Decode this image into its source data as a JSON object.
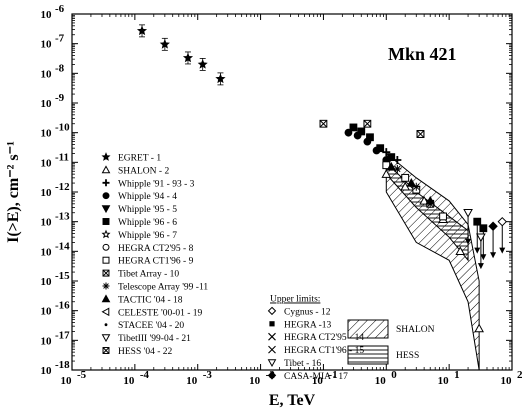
{
  "chart_data": {
    "type": "scatter",
    "title": "Mkn 421",
    "xlabel": "E, TeV",
    "ylabel": "I(>E), cm⁻² s⁻¹",
    "xscale": "log",
    "yscale": "log",
    "xlim": [
      1e-05,
      100
    ],
    "ylim": [
      1e-18,
      1e-06
    ],
    "grid": false,
    "x_tick_labels": [
      "10",
      "10",
      "10",
      "10",
      "10",
      "10",
      "10",
      "10"
    ],
    "x_tick_exponents": [
      "-5",
      "-4",
      "-3",
      "-2",
      "-1",
      "0",
      "1",
      "2"
    ],
    "y_tick_labels": [
      "10",
      "10",
      "10",
      "10",
      "10",
      "10",
      "10",
      "10",
      "10",
      "10",
      "10",
      "10",
      "10"
    ],
    "y_tick_exponents": [
      "-6",
      "-7",
      "-8",
      "-9",
      "-10",
      "-11",
      "-12",
      "-13",
      "-14",
      "-15",
      "-16",
      "-17",
      "-18"
    ],
    "series": [
      {
        "name": "EGRET - 1",
        "marker": "star-filled",
        "x": [
          0.00013,
          0.0003,
          0.0007,
          0.0012,
          0.0023
        ],
        "y": [
          2.7e-07,
          9.5e-08,
          3.3e-08,
          2e-08,
          6.5e-09
        ]
      },
      {
        "name": "Whipple '96 - 6",
        "marker": "square-filled",
        "x": [
          0.3,
          0.4,
          0.55,
          0.8,
          1.2
        ],
        "y": [
          1.5e-10,
          1.1e-10,
          7e-11,
          3e-11,
          1.5e-11
        ]
      },
      {
        "name": "Whipple '94 - 4",
        "marker": "circle-filled",
        "x": [
          0.25,
          0.35,
          0.5,
          0.7,
          1.0
        ],
        "y": [
          1e-10,
          8e-11,
          5e-11,
          2.5e-11,
          1.2e-11
        ]
      },
      {
        "name": "HESS '04 - 22",
        "marker": "square-x",
        "x": [
          0.1,
          0.5,
          3.5
        ],
        "y": [
          2e-10,
          2e-10,
          9e-11
        ]
      },
      {
        "name": "SHALON - 2",
        "marker": "triangle-open",
        "x": [
          1.0,
          2.0,
          4.0,
          8.0,
          15.0,
          30.0
        ],
        "y": [
          4e-12,
          1.5e-12,
          5e-13,
          1.2e-13,
          1e-14,
          2.5e-17
        ]
      },
      {
        "name": "HEGRA CT1'96 - 9",
        "marker": "square-open",
        "x": [
          1.0,
          2.0,
          3.0,
          5.0,
          8.0
        ],
        "y": [
          8e-12,
          3e-12,
          1.2e-12,
          4e-13,
          1.5e-13
        ]
      },
      {
        "name": "Telescope Array '99 -11",
        "marker": "asterisk",
        "x": [
          1.5,
          3.0,
          5.0
        ],
        "y": [
          6e-12,
          1.5e-12,
          4e-13
        ]
      },
      {
        "name": "TACTIC '04 - 18",
        "marker": "triangle-filled",
        "x": [
          1.2,
          2.5,
          5.0
        ],
        "y": [
          7e-12,
          2e-12,
          5e-13
        ]
      },
      {
        "name": "Whipple '91 - 93 - 3",
        "marker": "plus",
        "x": [
          1.0,
          1.5
        ],
        "y": [
          2.2e-11,
          1.2e-11
        ]
      },
      {
        "name": "Tibet Array - 10",
        "marker": "square-x",
        "x": [
          3.5
        ],
        "y": [
          9e-11
        ]
      }
    ],
    "upper_limits": [
      {
        "name": "CASA-MIA - 17",
        "marker": "diamond-filled",
        "x": [
          50
        ],
        "y": [
          7e-14
        ]
      },
      {
        "name": "HEGRA -13",
        "marker": "square-filled",
        "x": [
          28,
          35
        ],
        "y": [
          1e-13,
          6e-14
        ]
      },
      {
        "name": "Cygnus - 12",
        "marker": "diamond-open",
        "x": [
          70
        ],
        "y": [
          1e-13
        ]
      },
      {
        "name": "Tibet - 16",
        "marker": "triangle-down-open",
        "x": [
          20,
          32
        ],
        "y": [
          2e-13,
          3e-14
        ]
      }
    ],
    "bands": [
      {
        "name": "SHALON",
        "fill": "diagonal-hatch",
        "upper": [
          [
            1,
            2e-11
          ],
          [
            3,
            3e-12
          ],
          [
            10,
            5e-13
          ],
          [
            20,
            8e-14
          ],
          [
            30,
            1e-15
          ]
        ],
        "lower": [
          [
            1,
            1e-12
          ],
          [
            3,
            2e-14
          ],
          [
            10,
            5e-15
          ],
          [
            20,
            2e-16
          ],
          [
            30,
            1e-18
          ]
        ]
      },
      {
        "name": "HESS",
        "fill": "horizontal-hatch",
        "upper": [
          [
            1,
            1e-11
          ],
          [
            3,
            1e-12
          ],
          [
            10,
            1.5e-13
          ],
          [
            20,
            5e-14
          ]
        ],
        "lower": [
          [
            1,
            4e-12
          ],
          [
            3,
            3e-13
          ],
          [
            10,
            3e-14
          ],
          [
            20,
            5e-15
          ]
        ]
      }
    ],
    "legend": {
      "left": [
        {
          "symbol": "star-filled",
          "label": "EGRET - 1"
        },
        {
          "symbol": "triangle-open",
          "label": " SHALON - 2"
        },
        {
          "symbol": "plus",
          "label": "Whipple '91 - 93 - 3"
        },
        {
          "symbol": "circle-filled",
          "label": "Whipple '94 - 4"
        },
        {
          "symbol": "triangle-down-filled",
          "label": "Whipple  '95 - 5"
        },
        {
          "symbol": "square-filled",
          "label": "Whipple '96 - 6"
        },
        {
          "symbol": "star-open",
          "label": "Whipple '96 - 7"
        },
        {
          "symbol": "circle-open",
          "label": "HEGRA CT2'95 - 8"
        },
        {
          "symbol": "square-open",
          "label": "HEGRA CT1'96 - 9"
        },
        {
          "symbol": "square-x",
          "label": "Tibet Array - 10"
        },
        {
          "symbol": "asterisk",
          "label": "Telescope Array '99 -11"
        },
        {
          "symbol": "triangle-filled",
          "label": "TACTIC '04 - 18"
        },
        {
          "symbol": "triangle-left-open",
          "label": "CELESTE '00-01 - 19"
        },
        {
          "symbol": "dot",
          "label": "STACEE '04 - 20"
        },
        {
          "symbol": "triangle-down-open",
          "label": "TibetIII '99-04 - 21"
        },
        {
          "symbol": "square-x",
          "label": "HESS '04 - 22"
        }
      ],
      "upper_limits_heading": "Upper limits:",
      "right": [
        {
          "symbol": "diamond-open",
          "label": "Cygnus - 12"
        },
        {
          "symbol": "square-filled-small",
          "label": "HEGRA -13"
        },
        {
          "symbol": "x",
          "label": "HEGRA CT2'95 - 14"
        },
        {
          "symbol": "x",
          "label": "HEGRA CT1'96 - 15"
        },
        {
          "symbol": "triangle-down-open",
          "label": "Tibet - 16"
        },
        {
          "symbol": "diamond-filled",
          "label": "CASA-MIA - 17"
        }
      ],
      "bands": [
        {
          "fill": "diagonal-hatch",
          "label": "SHALON"
        },
        {
          "fill": "horizontal-hatch",
          "label": "HESS"
        }
      ]
    }
  }
}
